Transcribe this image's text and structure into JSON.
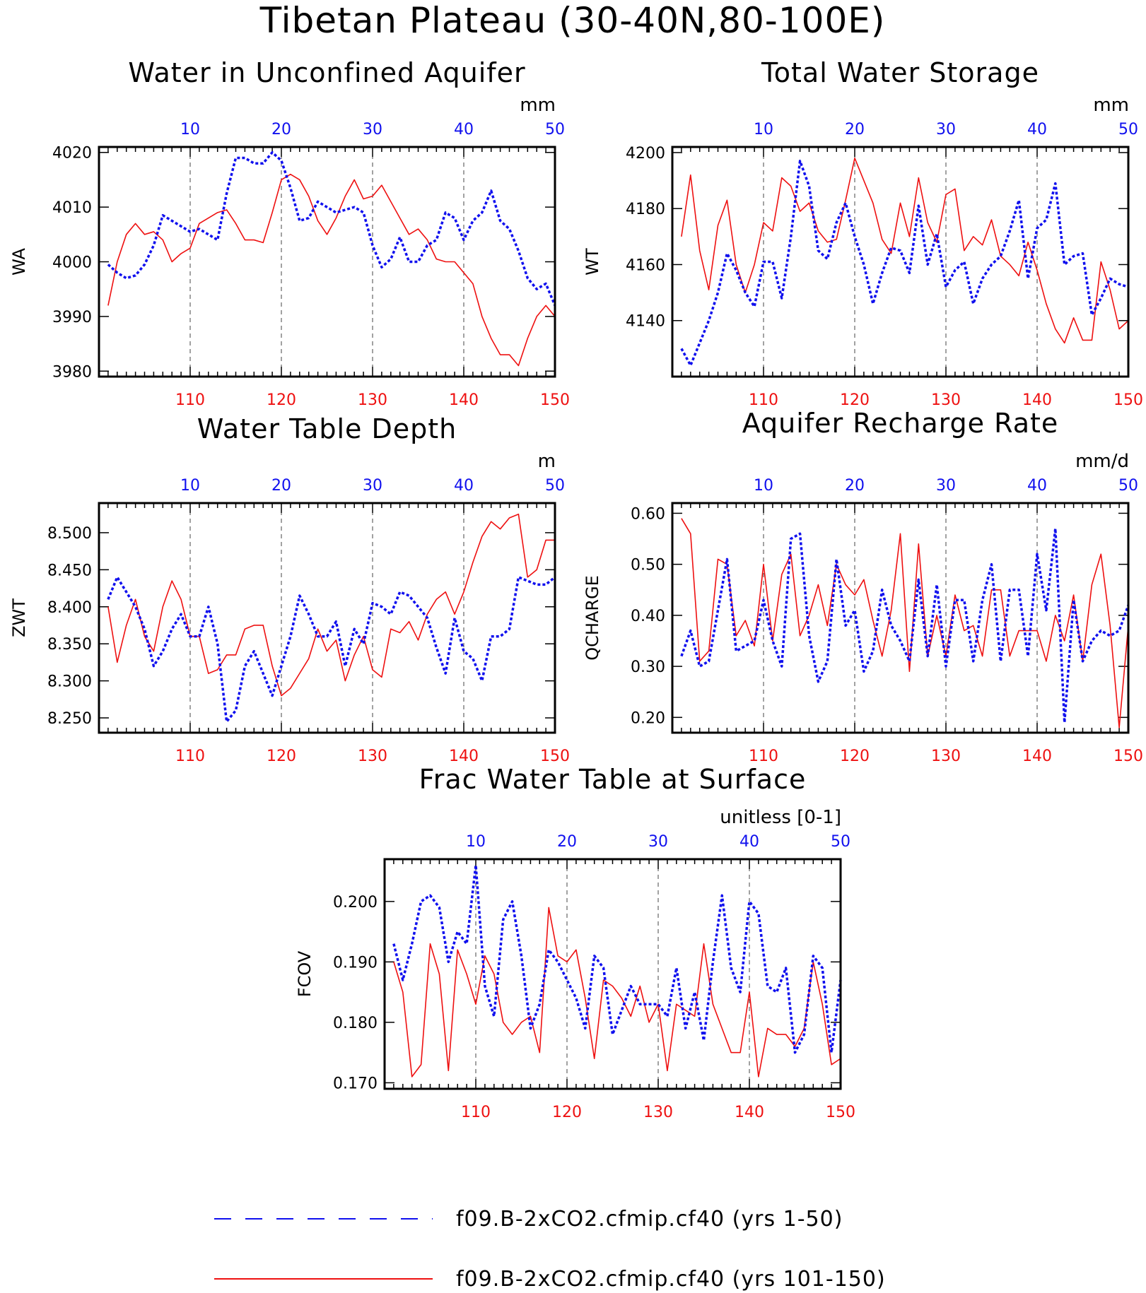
{
  "title": "Tibetan Plateau (30-40N,80-100E)",
  "colors": {
    "series1": "#1010ee",
    "series2": "#ee1010",
    "axis": "#000000"
  },
  "legend": [
    {
      "label": "f09.B-2xCO2.cfmip.cf40 (yrs 1-50)",
      "style": "dashed",
      "color": "#1010ee"
    },
    {
      "label": "f09.B-2xCO2.cfmip.cf40 (yrs 101-150)",
      "style": "solid",
      "color": "#ee1010"
    }
  ],
  "chart_data": [
    {
      "type": "line",
      "title": "Water in Unconfined Aquifer",
      "units": "mm",
      "ylabel": "WA",
      "ylim": [
        3979,
        4021
      ],
      "yticks": [
        3980,
        3990,
        4000,
        4010,
        4020
      ],
      "top_xticks": [
        10,
        20,
        30,
        40,
        50
      ],
      "bottom_xticks": [
        110,
        120,
        130,
        140,
        150
      ],
      "series": [
        {
          "x_axis": "top",
          "values": [
            3999.5,
            3998,
            3997,
            3997.5,
            3999.5,
            4003,
            4008.5,
            4007.5,
            4006.5,
            4005.5,
            4006,
            4005,
            4004,
            4012.5,
            4019,
            4019,
            4018,
            4018,
            4020,
            4018.5,
            4013.5,
            4007.5,
            4008,
            4011,
            4010,
            4009,
            4009.5,
            4010,
            4009,
            4003,
            3999,
            4000.5,
            4004.5,
            4000,
            4000,
            4003,
            4004,
            4009,
            4008,
            4004,
            4007.5,
            4009,
            4013,
            4007.5,
            4006,
            4002,
            3997,
            3995,
            3996,
            3992
          ]
        },
        {
          "x_axis": "bottom",
          "values": [
            3992,
            4000,
            4005,
            4007,
            4005,
            4005.5,
            4004,
            4000,
            4001.5,
            4002.5,
            4007,
            4008,
            4009,
            4009.5,
            4007,
            4004,
            4004,
            4003.5,
            4009,
            4015,
            4016,
            4015,
            4012,
            4007.5,
            4005,
            4008,
            4012,
            4015,
            4011.5,
            4012,
            4014,
            4011,
            4008,
            4005,
            4006,
            4004,
            4000.5,
            4000,
            4000,
            3998,
            3996,
            3990,
            3986,
            3983,
            3983,
            3981,
            3986,
            3990,
            3992,
            3990
          ]
        }
      ]
    },
    {
      "type": "line",
      "title": "Total Water Storage",
      "units": "mm",
      "ylabel": "WT",
      "ylim": [
        4120,
        4202
      ],
      "yticks": [
        4140,
        4160,
        4180,
        4200
      ],
      "top_xticks": [
        10,
        20,
        30,
        40,
        50
      ],
      "bottom_xticks": [
        110,
        120,
        130,
        140,
        150
      ],
      "series": [
        {
          "x_axis": "top",
          "values": [
            4130,
            4124,
            4132,
            4140,
            4150,
            4164,
            4158,
            4150,
            4145,
            4161,
            4161,
            4148,
            4170,
            4197,
            4188,
            4165,
            4162,
            4175,
            4182,
            4170,
            4160,
            4146,
            4157,
            4166,
            4165,
            4157,
            4181,
            4160,
            4171,
            4152,
            4158,
            4161,
            4146,
            4155,
            4160,
            4163,
            4172,
            4183,
            4155,
            4173,
            4176,
            4189,
            4160,
            4163,
            4164,
            4142,
            4148,
            4155,
            4153,
            4152
          ]
        },
        {
          "x_axis": "bottom",
          "values": [
            4170,
            4192,
            4165,
            4151,
            4174,
            4183,
            4160,
            4150,
            4160,
            4175,
            4172,
            4191,
            4188,
            4179,
            4182,
            4172,
            4168,
            4169,
            4183,
            4198,
            4190,
            4182,
            4169,
            4164,
            4182,
            4170,
            4191,
            4175,
            4168,
            4185,
            4187,
            4165,
            4170,
            4167,
            4176,
            4163,
            4160,
            4156,
            4168,
            4158,
            4146,
            4137,
            4132,
            4141,
            4133,
            4133,
            4161,
            4151,
            4137,
            4140
          ]
        }
      ]
    },
    {
      "type": "line",
      "title": "Water Table Depth",
      "units": "m",
      "ylabel": "ZWT",
      "ylim": [
        8.23,
        8.54
      ],
      "yticks": [
        "8.250",
        "8.300",
        "8.350",
        "8.400",
        "8.450",
        "8.500"
      ],
      "top_xticks": [
        10,
        20,
        30,
        40,
        50
      ],
      "bottom_xticks": [
        110,
        120,
        130,
        140,
        150
      ],
      "series": [
        {
          "x_axis": "top",
          "values": [
            8.41,
            8.44,
            8.42,
            8.4,
            8.37,
            8.32,
            8.34,
            8.37,
            8.39,
            8.36,
            8.36,
            8.4,
            8.35,
            8.245,
            8.26,
            8.32,
            8.34,
            8.31,
            8.28,
            8.32,
            8.36,
            8.415,
            8.39,
            8.36,
            8.36,
            8.38,
            8.32,
            8.37,
            8.35,
            8.405,
            8.4,
            8.39,
            8.42,
            8.415,
            8.4,
            8.385,
            8.345,
            8.31,
            8.385,
            8.34,
            8.33,
            8.3,
            8.36,
            8.36,
            8.37,
            8.44,
            8.435,
            8.43,
            8.43,
            8.44
          ]
        },
        {
          "x_axis": "bottom",
          "values": [
            8.4,
            8.325,
            8.375,
            8.41,
            8.36,
            8.34,
            8.4,
            8.435,
            8.41,
            8.36,
            8.36,
            8.31,
            8.315,
            8.335,
            8.335,
            8.37,
            8.375,
            8.375,
            8.32,
            8.28,
            8.29,
            8.31,
            8.33,
            8.37,
            8.34,
            8.355,
            8.3,
            8.335,
            8.36,
            8.315,
            8.305,
            8.37,
            8.365,
            8.38,
            8.355,
            8.39,
            8.41,
            8.42,
            8.39,
            8.42,
            8.46,
            8.495,
            8.515,
            8.505,
            8.52,
            8.525,
            8.44,
            8.45,
            8.49,
            8.49
          ]
        }
      ]
    },
    {
      "type": "line",
      "title": "Aquifer Recharge Rate",
      "units": "mm/d",
      "ylabel": "QCHARGE",
      "ylim": [
        0.17,
        0.62
      ],
      "yticks": [
        "0.20",
        "0.30",
        "0.40",
        "0.50",
        "0.60"
      ],
      "top_xticks": [
        10,
        20,
        30,
        40,
        50
      ],
      "bottom_xticks": [
        110,
        120,
        130,
        140,
        150
      ],
      "series": [
        {
          "x_axis": "top",
          "values": [
            0.32,
            0.37,
            0.3,
            0.31,
            0.41,
            0.51,
            0.33,
            0.34,
            0.35,
            0.43,
            0.35,
            0.3,
            0.55,
            0.56,
            0.36,
            0.27,
            0.31,
            0.51,
            0.38,
            0.41,
            0.29,
            0.33,
            0.45,
            0.38,
            0.35,
            0.31,
            0.47,
            0.32,
            0.46,
            0.3,
            0.43,
            0.43,
            0.31,
            0.43,
            0.5,
            0.31,
            0.45,
            0.45,
            0.32,
            0.52,
            0.41,
            0.57,
            0.19,
            0.43,
            0.31,
            0.35,
            0.37,
            0.36,
            0.37,
            0.42
          ]
        },
        {
          "x_axis": "bottom",
          "values": [
            0.59,
            0.56,
            0.31,
            0.33,
            0.51,
            0.5,
            0.36,
            0.39,
            0.34,
            0.5,
            0.35,
            0.48,
            0.52,
            0.36,
            0.4,
            0.46,
            0.38,
            0.5,
            0.46,
            0.44,
            0.47,
            0.39,
            0.32,
            0.41,
            0.56,
            0.29,
            0.54,
            0.32,
            0.4,
            0.32,
            0.44,
            0.37,
            0.38,
            0.32,
            0.45,
            0.45,
            0.32,
            0.37,
            0.37,
            0.37,
            0.31,
            0.4,
            0.35,
            0.44,
            0.31,
            0.46,
            0.52,
            0.38,
            0.18,
            0.38
          ]
        }
      ]
    },
    {
      "type": "line",
      "title": "Frac Water Table at Surface",
      "units": "unitless [0-1]",
      "ylabel": "FCOV",
      "ylim": [
        0.169,
        0.207
      ],
      "yticks": [
        "0.170",
        "0.180",
        "0.190",
        "0.200"
      ],
      "top_xticks": [
        10,
        20,
        30,
        40,
        50
      ],
      "bottom_xticks": [
        110,
        120,
        130,
        140,
        150
      ],
      "series": [
        {
          "x_axis": "top",
          "values": [
            0.193,
            0.187,
            0.193,
            0.2,
            0.201,
            0.199,
            0.19,
            0.195,
            0.193,
            0.206,
            0.186,
            0.181,
            0.197,
            0.2,
            0.191,
            0.179,
            0.183,
            0.192,
            0.19,
            0.187,
            0.184,
            0.179,
            0.191,
            0.189,
            0.178,
            0.182,
            0.186,
            0.183,
            0.183,
            0.183,
            0.181,
            0.189,
            0.179,
            0.185,
            0.177,
            0.19,
            0.201,
            0.189,
            0.185,
            0.2,
            0.198,
            0.186,
            0.185,
            0.189,
            0.175,
            0.178,
            0.191,
            0.189,
            0.175,
            0.187
          ]
        },
        {
          "x_axis": "bottom",
          "values": [
            0.19,
            0.185,
            0.171,
            0.173,
            0.193,
            0.188,
            0.172,
            0.192,
            0.188,
            0.183,
            0.191,
            0.188,
            0.18,
            0.178,
            0.18,
            0.181,
            0.175,
            0.199,
            0.191,
            0.19,
            0.192,
            0.184,
            0.174,
            0.187,
            0.186,
            0.184,
            0.181,
            0.186,
            0.18,
            0.183,
            0.172,
            0.183,
            0.182,
            0.181,
            0.193,
            0.183,
            0.179,
            0.175,
            0.175,
            0.185,
            0.171,
            0.179,
            0.178,
            0.178,
            0.176,
            0.179,
            0.19,
            0.183,
            0.173,
            0.174
          ]
        }
      ]
    }
  ]
}
